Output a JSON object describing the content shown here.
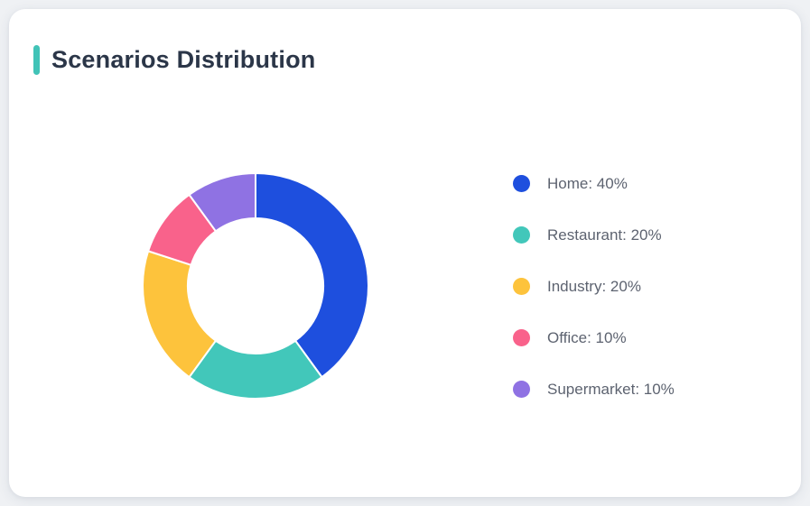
{
  "card": {
    "title": "Scenarios Distribution"
  },
  "colors": {
    "page_bg": "#EFF1F4",
    "card_bg": "#FFFFFF",
    "accent": "#41C3B7",
    "title_text": "#2B3648",
    "legend_text": "#5D6370",
    "slice_separator": "#FFFFFF"
  },
  "chart_data": {
    "type": "pie",
    "title": "Scenarios Distribution",
    "donut": true,
    "inner_radius_ratio": 0.6,
    "start_angle_deg": 0,
    "direction": "clockwise",
    "legend_position": "right",
    "categories": [
      "Home",
      "Restaurant",
      "Industry",
      "Office",
      "Supermarket"
    ],
    "values": [
      40,
      20,
      20,
      10,
      10
    ],
    "slices": [
      {
        "label": "Home",
        "value": 40,
        "color": "#1E4FDE",
        "legend_text": "Home: 40%"
      },
      {
        "label": "Restaurant",
        "value": 20,
        "color": "#42C7BA",
        "legend_text": "Restaurant: 20%"
      },
      {
        "label": "Industry",
        "value": 20,
        "color": "#FDC33C",
        "legend_text": "Industry: 20%"
      },
      {
        "label": "Office",
        "value": 10,
        "color": "#F9628B",
        "legend_text": "Office: 10%"
      },
      {
        "label": "Supermarket",
        "value": 10,
        "color": "#8F72E3",
        "legend_text": "Supermarket: 10%"
      }
    ]
  }
}
